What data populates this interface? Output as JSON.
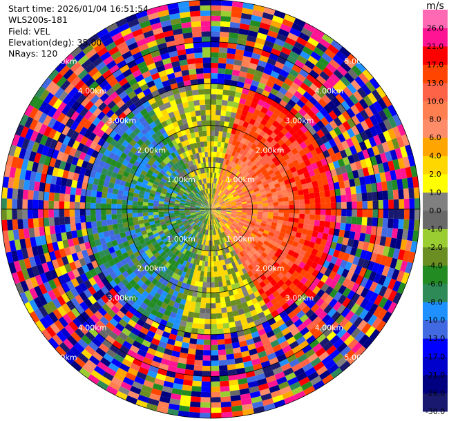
{
  "header": {
    "start_time": "Start time: 2026/01/04 16:51:54",
    "instrument": "WLS200s-181",
    "field": "Field: VEL",
    "elevation": "Elevation(deg): 35.00",
    "nrays": "NRays: 120"
  },
  "chart_data": {
    "type": "heatmap",
    "projection": "polar-ppi",
    "field": "VEL",
    "units": "m/s",
    "n_rays": 120,
    "range_max_km": 5.0,
    "range_ring_labels": [
      "1.00km",
      "2.00km",
      "3.00km",
      "4.00km",
      "5.00km"
    ],
    "colorbar": {
      "unit_label": "m/s",
      "boundaries": [
        -30.0,
        -26.0,
        -21.0,
        -17.0,
        -13.0,
        -10.0,
        -8.0,
        -6.0,
        -4.0,
        -2.0,
        -1.0,
        0.0,
        1.0,
        2.0,
        4.0,
        6.0,
        8.0,
        10.0,
        13.0,
        17.0,
        21.0,
        26.0
      ],
      "tick_labels": [
        "-30.0",
        "-26.0",
        "-21.0",
        "-17.0",
        "-13.0",
        "-10.0",
        "-8.0",
        "-6.0",
        "-4.0",
        "-2.0",
        "-1.0",
        "0.0",
        "1.0",
        "2.0",
        "4.0",
        "6.0",
        "8.0",
        "10.0",
        "13.0",
        "17.0",
        "21.0",
        "26.0"
      ],
      "colors": [
        "#191970",
        "#000080",
        "#0000cd",
        "#0000ff",
        "#4169e1",
        "#1e90ff",
        "#2e8b57",
        "#228b22",
        "#6b8e23",
        "#9acd32",
        "#696969",
        "#808080",
        "#ffff00",
        "#ffd700",
        "#ffa500",
        "#ff8c69",
        "#ff7f50",
        "#ff6347",
        "#ff4500",
        "#ff0000",
        "#ff1493",
        "#ff69b4"
      ]
    },
    "pattern": {
      "positive_sector_deg": [
        15,
        150
      ],
      "negative_sector_deg": [
        195,
        330
      ],
      "near_range_km": 3.0
    }
  }
}
